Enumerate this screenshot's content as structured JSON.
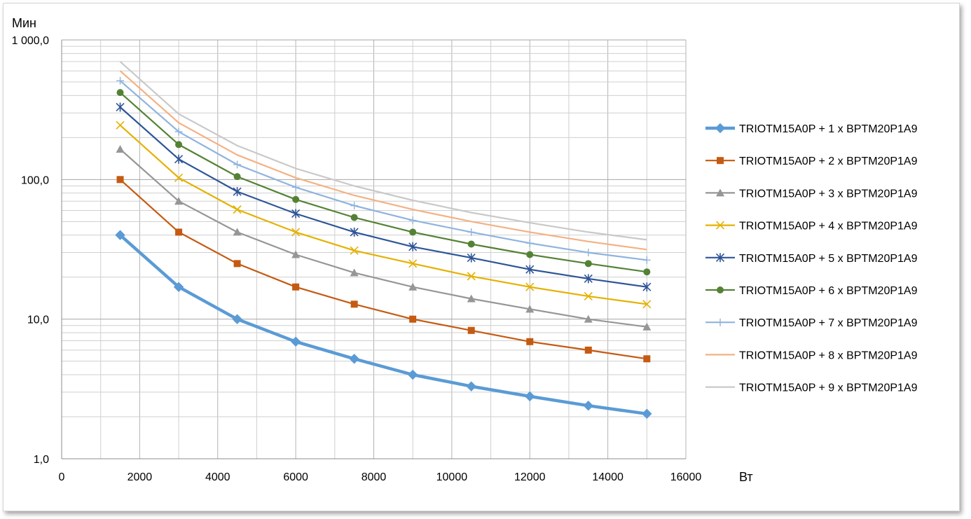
{
  "chart_data": {
    "type": "line",
    "xlabel": "Вт",
    "ylabel": "Мин",
    "x_scale": "linear",
    "y_scale": "log",
    "xlim": [
      0,
      16000
    ],
    "ylim": [
      1,
      1000
    ],
    "x_ticks": [
      "0",
      "2000",
      "4000",
      "6000",
      "8000",
      "10000",
      "12000",
      "14000",
      "16000"
    ],
    "y_ticks": [
      "1,0",
      "10,0",
      "100,0",
      "1 000,0"
    ],
    "grid": true,
    "legend_position": "right",
    "x": [
      1500,
      3000,
      4500,
      6000,
      7500,
      9000,
      10500,
      12000,
      13500,
      15000
    ],
    "series": [
      {
        "name": "TRIOTM15A0P + 1 x BPTM20P1A9",
        "color": "#5b9bd5",
        "marker": "diamond",
        "values": [
          40,
          17,
          10,
          6.9,
          5.2,
          4.0,
          3.3,
          2.8,
          2.4,
          2.1
        ]
      },
      {
        "name": "TRIOTM15A0P + 2 x BPTM20P1A9",
        "color": "#c55a11",
        "marker": "square",
        "values": [
          100,
          42,
          25,
          17,
          12.8,
          10,
          8.3,
          6.9,
          6.0,
          5.2
        ]
      },
      {
        "name": "TRIOTM15A0P + 3 x BPTM20P1A9",
        "color": "#969696",
        "marker": "triangle",
        "values": [
          165,
          70,
          42,
          29,
          21.5,
          17,
          14,
          11.8,
          10,
          8.8
        ]
      },
      {
        "name": "TRIOTM15A0P + 4 x BPTM20P1A9",
        "color": "#e5b100",
        "marker": "x",
        "values": [
          245,
          103,
          61,
          42,
          31,
          25,
          20.3,
          17,
          14.6,
          12.8
        ]
      },
      {
        "name": "TRIOTM15A0P + 5 x BPTM20P1A9",
        "color": "#2f5597",
        "marker": "star",
        "values": [
          330,
          140,
          82,
          57,
          42,
          33,
          27.5,
          22.7,
          19.5,
          17
        ]
      },
      {
        "name": "TRIOTM15A0P + 6 x BPTM20P1A9",
        "color": "#548235",
        "marker": "circle",
        "values": [
          420,
          178,
          105,
          72,
          53.5,
          42,
          34.5,
          29,
          25,
          21.8
        ]
      },
      {
        "name": "TRIOTM15A0P + 7 x BPTM20P1A9",
        "color": "#8fb4de",
        "marker": "plus",
        "values": [
          510,
          220,
          128,
          88,
          65,
          51,
          42,
          35,
          30,
          26.5
        ]
      },
      {
        "name": "TRIOTM15A0P + 8 x BPTM20P1A9",
        "color": "#f4b183",
        "marker": "none",
        "values": [
          600,
          255,
          150,
          103,
          77,
          61,
          50,
          42,
          36,
          31.5
        ]
      },
      {
        "name": "TRIOTM15A0P + 9 x BPTM20P1A9",
        "color": "#c9c9c9",
        "marker": "none",
        "values": [
          700,
          295,
          175,
          120,
          90,
          71,
          58,
          49,
          42,
          37
        ]
      }
    ]
  }
}
